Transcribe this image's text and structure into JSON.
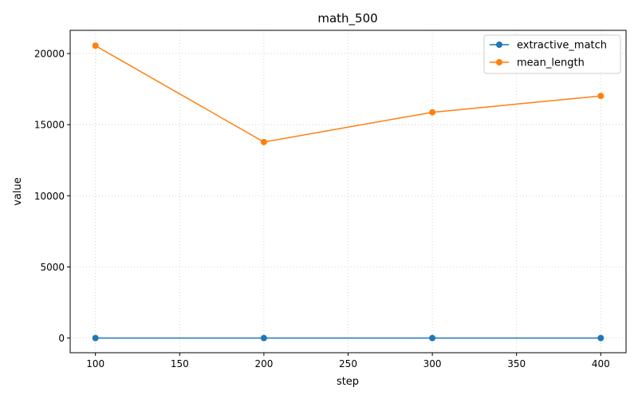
{
  "chart_data": {
    "type": "line",
    "title": "math_500",
    "xlabel": "step",
    "ylabel": "value",
    "x": [
      100,
      200,
      300,
      400
    ],
    "xlim": [
      85,
      415
    ],
    "ylim": [
      -1030,
      21630
    ],
    "xticks": [
      100,
      150,
      200,
      250,
      300,
      350,
      400
    ],
    "yticks": [
      0,
      5000,
      10000,
      15000,
      20000
    ],
    "grid": true,
    "legend_position": "top-right",
    "series": [
      {
        "name": "extractive_match",
        "color": "#1f77b4",
        "marker": "circle",
        "values": [
          0.5,
          0.6,
          0.6,
          0.6
        ]
      },
      {
        "name": "mean_length",
        "color": "#ff7f0e",
        "marker": "circle",
        "values": [
          20550,
          13780,
          15870,
          17020
        ]
      }
    ]
  }
}
